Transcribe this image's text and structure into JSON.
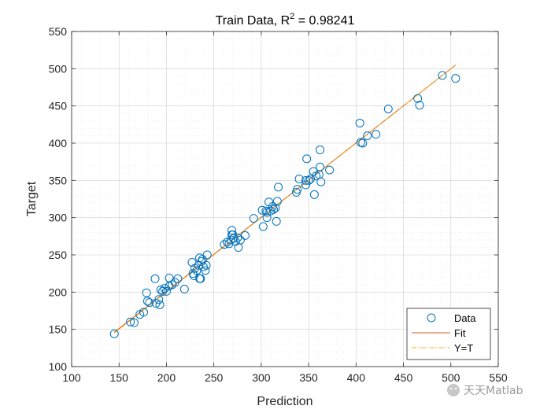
{
  "chart_data": {
    "type": "scatter",
    "title_prefix": "Train Data, R",
    "title_sup": "2",
    "title_suffix": " = 0.98241",
    "xlabel": "Prediction",
    "ylabel": "Target",
    "xlim": [
      100,
      550
    ],
    "ylim": [
      100,
      550
    ],
    "xticks": [
      100,
      150,
      200,
      250,
      300,
      350,
      400,
      450,
      500,
      550
    ],
    "yticks": [
      100,
      150,
      200,
      250,
      300,
      350,
      400,
      450,
      500,
      550
    ],
    "grid": "on",
    "legend_position": "bottom-right",
    "series": [
      {
        "name": "Data",
        "style": "open-circle",
        "color": "#0072BD",
        "points": [
          [
            145,
            144
          ],
          [
            162,
            160
          ],
          [
            166,
            159
          ],
          [
            172,
            170
          ],
          [
            176,
            173
          ],
          [
            179,
            199
          ],
          [
            180,
            188
          ],
          [
            182,
            186
          ],
          [
            188,
            218
          ],
          [
            189,
            185
          ],
          [
            192,
            190
          ],
          [
            193,
            183
          ],
          [
            194,
            203
          ],
          [
            196,
            201
          ],
          [
            198,
            205
          ],
          [
            200,
            201
          ],
          [
            203,
            208
          ],
          [
            203,
            219
          ],
          [
            206,
            210
          ],
          [
            209,
            213
          ],
          [
            212,
            218
          ],
          [
            219,
            204
          ],
          [
            227,
            240
          ],
          [
            228,
            225
          ],
          [
            229,
            222
          ],
          [
            230,
            232
          ],
          [
            232,
            229
          ],
          [
            234,
            236
          ],
          [
            235,
            246
          ],
          [
            235,
            218
          ],
          [
            236,
            218
          ],
          [
            237,
            241
          ],
          [
            238,
            244
          ],
          [
            239,
            234
          ],
          [
            241,
            229
          ],
          [
            242,
            236
          ],
          [
            243,
            250
          ],
          [
            261,
            264
          ],
          [
            264,
            267
          ],
          [
            266,
            265
          ],
          [
            268,
            270
          ],
          [
            269,
            277
          ],
          [
            269,
            283
          ],
          [
            270,
            277
          ],
          [
            271,
            272
          ],
          [
            273,
            268
          ],
          [
            275,
            273
          ],
          [
            276,
            260
          ],
          [
            278,
            270
          ],
          [
            283,
            276
          ],
          [
            292,
            299
          ],
          [
            301,
            310
          ],
          [
            302,
            288
          ],
          [
            305,
            309
          ],
          [
            306,
            307
          ],
          [
            306,
            300
          ],
          [
            308,
            321
          ],
          [
            310,
            309
          ],
          [
            312,
            315
          ],
          [
            313,
            311
          ],
          [
            315,
            313
          ],
          [
            316,
            295
          ],
          [
            317,
            322
          ],
          [
            318,
            341
          ],
          [
            337,
            334
          ],
          [
            338,
            338
          ],
          [
            340,
            352
          ],
          [
            347,
            350
          ],
          [
            347,
            344
          ],
          [
            348,
            379
          ],
          [
            350,
            350
          ],
          [
            352,
            352
          ],
          [
            355,
            362
          ],
          [
            356,
            331
          ],
          [
            358,
            356
          ],
          [
            361,
            358
          ],
          [
            362,
            368
          ],
          [
            362,
            391
          ],
          [
            363,
            348
          ],
          [
            372,
            364
          ],
          [
            404,
            427
          ],
          [
            405,
            401
          ],
          [
            407,
            400
          ],
          [
            412,
            410
          ],
          [
            421,
            412
          ],
          [
            434,
            446
          ],
          [
            465,
            460
          ],
          [
            467,
            451
          ],
          [
            491,
            491
          ],
          [
            505,
            487
          ]
        ]
      },
      {
        "name": "Fit",
        "style": "line",
        "color": "#D95319",
        "line": [
          [
            145,
            146
          ],
          [
            505,
            505
          ]
        ]
      },
      {
        "name": "Y=T",
        "style": "dash-dot",
        "color": "#EDB120",
        "line": [
          [
            145,
            145
          ],
          [
            505,
            505
          ]
        ]
      }
    ]
  },
  "watermark": {
    "text": "天天Matlab",
    "icon": "wechat-icon"
  }
}
